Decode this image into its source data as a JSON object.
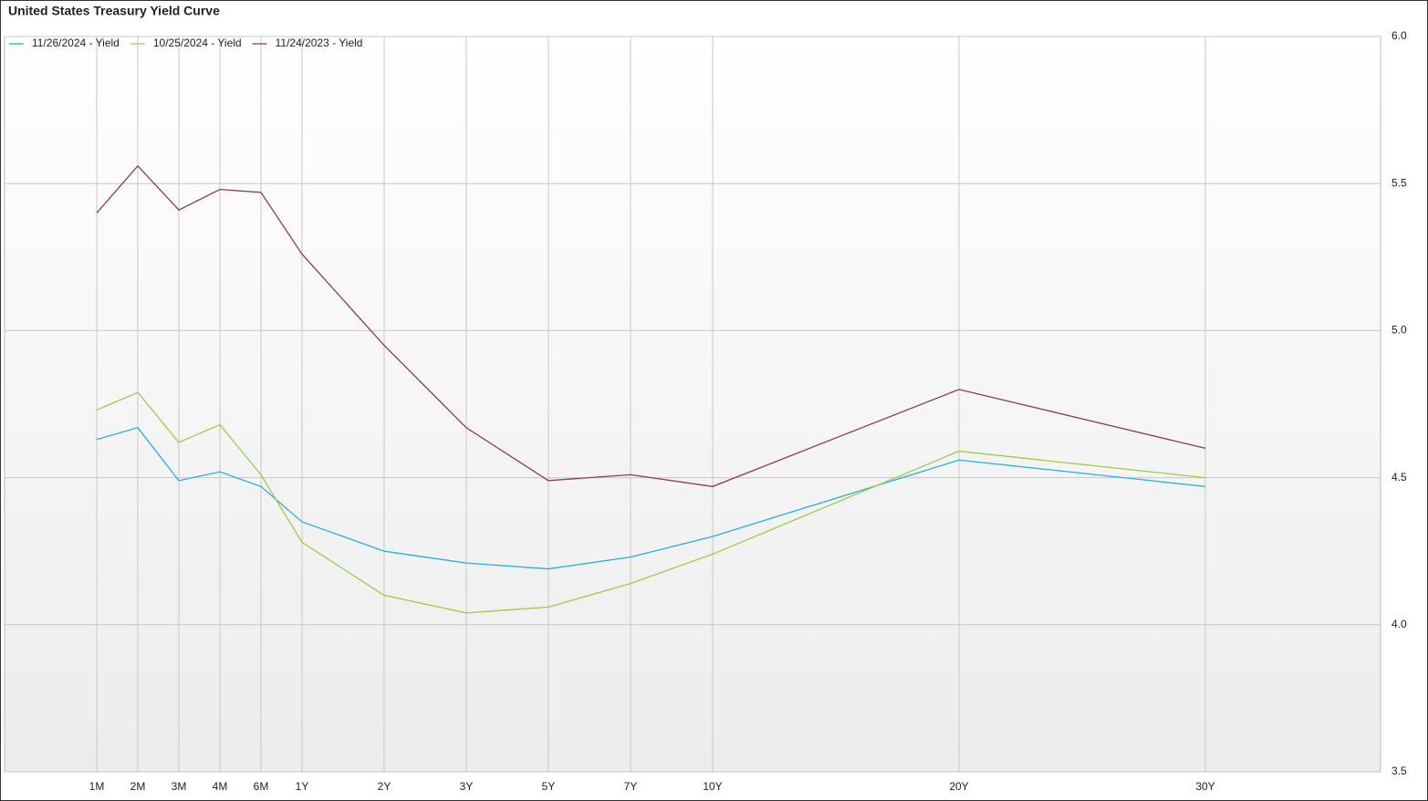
{
  "chart_data": {
    "type": "line",
    "title": "United States Treasury Yield Curve",
    "categories": [
      "1M",
      "2M",
      "3M",
      "4M",
      "6M",
      "1Y",
      "2Y",
      "3Y",
      "5Y",
      "7Y",
      "10Y",
      "20Y",
      "30Y"
    ],
    "series": [
      {
        "name": "11/26/2024 - Yield",
        "color": "#29aee0",
        "values": [
          4.63,
          4.67,
          4.49,
          4.52,
          4.47,
          4.35,
          4.25,
          4.21,
          4.19,
          4.23,
          4.3,
          4.56,
          4.47
        ]
      },
      {
        "name": "10/25/2024 - Yield",
        "color": "#9acd4a",
        "values": [
          4.73,
          4.79,
          4.62,
          4.68,
          4.51,
          4.28,
          4.1,
          4.04,
          4.06,
          4.14,
          4.24,
          4.59,
          4.5
        ]
      },
      {
        "name": "11/24/2023 - Yield",
        "color": "#8b3a5a",
        "values": [
          5.4,
          5.56,
          5.41,
          5.48,
          5.47,
          5.26,
          4.95,
          4.67,
          4.49,
          4.51,
          4.47,
          4.8,
          4.6
        ]
      }
    ],
    "ylim": [
      3.5,
      6.0
    ],
    "yticks": [
      {
        "value": 3.5,
        "label": "3.5"
      },
      {
        "value": 4.0,
        "label": "4.0"
      },
      {
        "value": 4.5,
        "label": "4.5"
      },
      {
        "value": 5.0,
        "label": "5.0"
      },
      {
        "value": 5.5,
        "label": "5.5"
      },
      {
        "value": 6.0,
        "label": "6.0"
      }
    ],
    "grid": true,
    "legend": "top-left"
  }
}
